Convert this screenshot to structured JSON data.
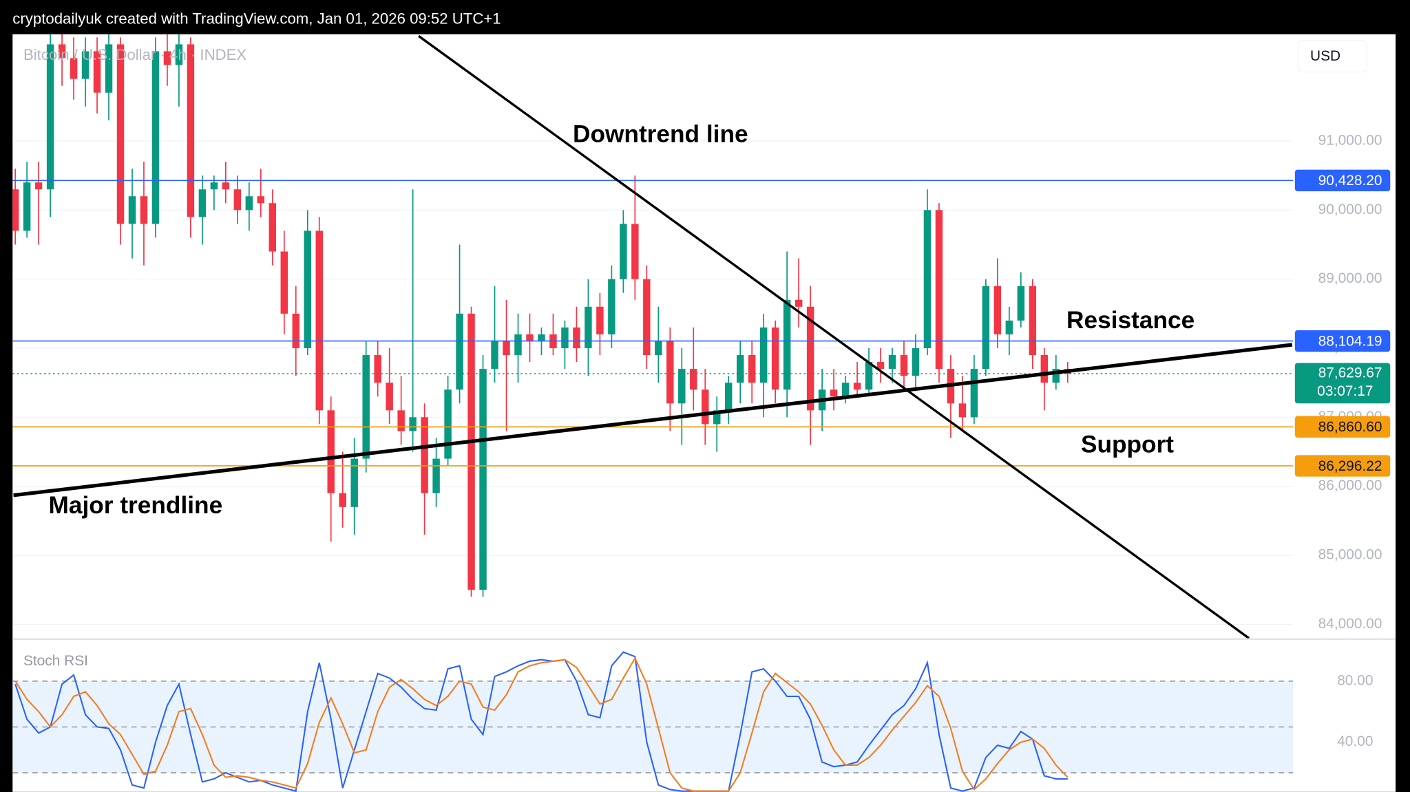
{
  "header": "cryptodailyuk created with TradingView.com, Jan 01, 2026 09:52 UTC+1",
  "chart_data": {
    "type": "candlestick",
    "title": "Bitcoin / U.S. Dollar · 4h · INDEX",
    "currency": "USD",
    "up_color": "#089981",
    "down_color": "#f23645",
    "xlim": [
      -0.15,
      109.2
    ],
    "ylim": [
      83800,
      92520
    ],
    "yticks": [
      {
        "value": 84000,
        "label": "84,000.00"
      },
      {
        "value": 85000,
        "label": "85,000.00"
      },
      {
        "value": 86000,
        "label": "86,000.00"
      },
      {
        "value": 87000,
        "label": "87,000.00"
      },
      {
        "value": 88000,
        "label": "88,000.00"
      },
      {
        "value": 89000,
        "label": "89,000.00"
      },
      {
        "value": 90000,
        "label": "90,000.00"
      },
      {
        "value": 91000,
        "label": "91,000.00"
      }
    ],
    "grid": true,
    "open": [
      90300,
      89700,
      90400,
      90300,
      92400,
      92200,
      91900,
      92300,
      91700,
      92400,
      89800,
      90200,
      89800,
      92300,
      92100,
      92400,
      89900,
      90300,
      90400,
      90300,
      90000,
      90200,
      90100,
      89400,
      88500,
      88000,
      89700,
      87100,
      85900,
      85700,
      86400,
      87900,
      87500,
      87100,
      86800,
      87000,
      85900,
      86400,
      87400,
      88500,
      84500,
      87700,
      88100,
      87900,
      88200,
      88100,
      88200,
      88000,
      88300,
      88000,
      88600,
      88200,
      89000,
      89800,
      89000,
      87900,
      88100,
      87200,
      87700,
      87400,
      86900,
      87100,
      87500,
      87900,
      87500,
      88300,
      87400,
      88700,
      88600,
      87100,
      87400,
      87300,
      87500,
      87400,
      87800,
      87700,
      87900,
      87600,
      88000,
      90000,
      87700,
      87200,
      87000,
      87700,
      88900,
      88200,
      88400,
      88900,
      87900,
      87500,
      87700
    ],
    "high": [
      90600,
      90700,
      90700,
      92600,
      92600,
      92500,
      92500,
      92500,
      92600,
      92500,
      90600,
      90700,
      92500,
      92600,
      92600,
      92500,
      90500,
      90500,
      90700,
      90500,
      90400,
      90600,
      90300,
      89700,
      88900,
      90000,
      89900,
      87300,
      86500,
      86700,
      88100,
      88100,
      88000,
      87600,
      90300,
      87200,
      86700,
      87600,
      89500,
      88600,
      87900,
      88900,
      88700,
      88500,
      88500,
      88300,
      88500,
      88400,
      88600,
      89000,
      88800,
      89200,
      90000,
      90500,
      89200,
      88600,
      88300,
      88000,
      88300,
      87700,
      87300,
      87600,
      88100,
      88100,
      88500,
      88400,
      89400,
      89300,
      88900,
      87700,
      87700,
      87600,
      87800,
      88000,
      88000,
      88000,
      88100,
      88200,
      90300,
      90100,
      87900,
      87600,
      87900,
      89000,
      89300,
      88600,
      89100,
      89000,
      88000,
      87900,
      87800
    ],
    "low": [
      89500,
      89600,
      89500,
      89900,
      91800,
      91600,
      91500,
      91400,
      91300,
      89500,
      89300,
      89200,
      89600,
      91800,
      91500,
      89600,
      89500,
      90000,
      90100,
      89800,
      89700,
      89900,
      89200,
      88200,
      87600,
      87900,
      86900,
      85200,
      85400,
      85300,
      86200,
      87300,
      86900,
      86600,
      86500,
      85300,
      85700,
      86300,
      87200,
      84400,
      84400,
      87500,
      86800,
      87500,
      87800,
      87900,
      87900,
      87700,
      87800,
      87600,
      87900,
      88000,
      88800,
      88700,
      87700,
      87500,
      86800,
      86600,
      87100,
      86600,
      86500,
      86900,
      87200,
      87200,
      87000,
      87200,
      87000,
      88300,
      86600,
      86800,
      87100,
      87200,
      87300,
      87300,
      87500,
      87500,
      87400,
      87400,
      87900,
      87500,
      86700,
      86800,
      86900,
      87600,
      88000,
      87900,
      88300,
      87700,
      87100,
      87400,
      87500
    ],
    "close": [
      89700,
      90400,
      90300,
      92400,
      92200,
      91900,
      92300,
      91700,
      92400,
      89800,
      90200,
      89800,
      92300,
      92100,
      92400,
      89900,
      90300,
      90400,
      90300,
      90000,
      90200,
      90100,
      89400,
      88500,
      88000,
      89700,
      87100,
      85900,
      85700,
      86400,
      87900,
      87500,
      87100,
      86800,
      87000,
      85900,
      86400,
      87400,
      88500,
      84500,
      87700,
      88100,
      87900,
      88200,
      88100,
      88200,
      88000,
      88300,
      88000,
      88600,
      88200,
      89000,
      89800,
      89000,
      87900,
      88100,
      87200,
      87700,
      87400,
      86900,
      87100,
      87500,
      87900,
      87500,
      88300,
      87400,
      88700,
      88600,
      87100,
      87400,
      87300,
      87500,
      87400,
      87800,
      87700,
      87900,
      87600,
      88000,
      90000,
      87700,
      87200,
      87000,
      87700,
      88900,
      88200,
      88400,
      88900,
      87900,
      87500,
      87700,
      87630
    ],
    "price_lines": [
      {
        "value": 90428.2,
        "label": "90,428.20",
        "color": "#2962ff"
      },
      {
        "value": 88104.19,
        "label": "88,104.19",
        "color": "#2962ff"
      },
      {
        "value": 86860.6,
        "label": "86,860.60",
        "color": "#f59d0c"
      },
      {
        "value": 86296.22,
        "label": "86,296.22",
        "color": "#f59d0c"
      }
    ],
    "current_price": {
      "value": 87629.67,
      "label": "87,629.67",
      "countdown": "03:07:17",
      "color": "#089981"
    },
    "trendlines": [
      {
        "from_index": 34.5,
        "from_price": 92520,
        "to_index": 105.5,
        "to_price": 83800
      },
      {
        "from_index": -0.15,
        "from_price": 85870,
        "to_index": 109.2,
        "to_price": 88050
      }
    ],
    "annotations": [
      "Downtrend line",
      "Resistance",
      "Support",
      "Major trendline"
    ]
  },
  "indicator": {
    "type": "line",
    "title": "Stoch RSI",
    "ylim": [
      7.5,
      106.9
    ],
    "yticks": [
      {
        "value": 80,
        "label": "80.00"
      },
      {
        "value": 40,
        "label": "40.00"
      }
    ],
    "levels": [
      80,
      50,
      20
    ],
    "band": [
      20,
      80
    ],
    "series": [
      {
        "color": "#2962ff",
        "values": [
          78,
          55,
          46,
          50,
          78,
          84,
          58,
          50,
          49,
          35,
          12,
          10,
          40,
          64,
          78,
          45,
          14,
          16,
          20,
          17,
          14,
          15,
          12,
          10,
          8,
          60,
          92,
          55,
          10,
          35,
          60,
          85,
          82,
          76,
          68,
          62,
          61,
          88,
          90,
          55,
          45,
          83,
          86,
          90,
          93,
          94,
          93,
          94,
          80,
          58,
          56,
          90,
          99,
          96,
          40,
          12,
          9,
          8,
          8,
          8,
          8,
          8,
          45,
          86,
          88,
          80,
          70,
          70,
          55,
          27,
          24,
          25,
          27,
          38,
          48,
          58,
          64,
          75,
          92,
          45,
          10,
          8,
          10,
          30,
          38,
          36,
          47,
          42,
          18,
          16,
          16
        ]
      },
      {
        "color": "#f57c1f",
        "values": [
          80,
          68,
          60,
          50,
          58,
          70,
          73,
          64,
          52,
          45,
          32,
          19,
          21,
          38,
          60,
          62,
          45,
          25,
          17,
          18,
          17,
          15,
          14,
          12,
          10,
          26,
          53,
          69,
          52,
          33,
          35,
          60,
          76,
          81,
          75,
          68,
          64,
          70,
          80,
          78,
          63,
          61,
          71,
          86,
          90,
          92,
          93,
          94,
          89,
          77,
          65,
          68,
          82,
          95,
          78,
          49,
          20,
          10,
          8,
          8,
          8,
          8,
          20,
          46,
          73,
          85,
          79,
          73,
          65,
          51,
          35,
          25,
          25,
          30,
          38,
          48,
          57,
          66,
          77,
          70,
          49,
          21,
          9,
          16,
          26,
          35,
          40,
          42,
          36,
          25,
          17
        ]
      }
    ]
  }
}
